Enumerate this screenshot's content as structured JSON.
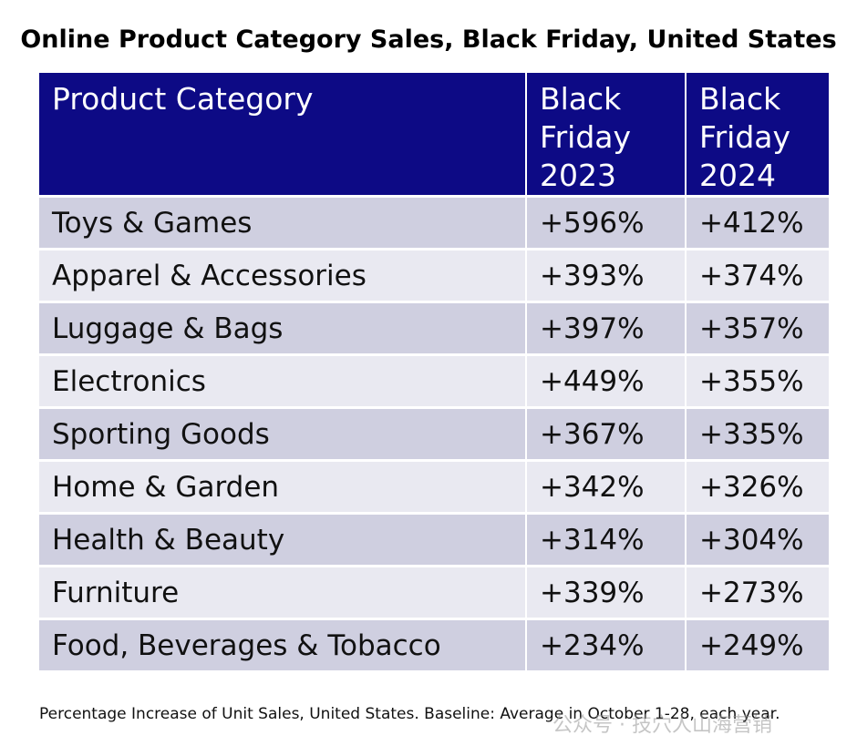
{
  "chart_data": {
    "type": "table",
    "title": "Online Product Category Sales, Black Friday, United States",
    "columns": [
      "Product Category",
      "Black Friday 2023",
      "Black Friday 2024"
    ],
    "rows": [
      {
        "category": "Toys & Games",
        "bf2023": "+596%",
        "bf2024": "+412%"
      },
      {
        "category": "Apparel & Accessories",
        "bf2023": "+393%",
        "bf2024": "+374%"
      },
      {
        "category": "Luggage & Bags",
        "bf2023": "+397%",
        "bf2024": "+357%"
      },
      {
        "category": "Electronics",
        "bf2023": "+449%",
        "bf2024": "+355%"
      },
      {
        "category": "Sporting Goods",
        "bf2023": "+367%",
        "bf2024": "+335%"
      },
      {
        "category": "Home & Garden",
        "bf2023": "+342%",
        "bf2024": "+326%"
      },
      {
        "category": "Health & Beauty",
        "bf2023": "+314%",
        "bf2024": "+304%"
      },
      {
        "category": "Furniture",
        "bf2023": "+339%",
        "bf2024": "+273%"
      },
      {
        "category": "Food, Beverages & Tobacco",
        "bf2023": "+234%",
        "bf2024": "+249%"
      }
    ],
    "footnote": "Percentage Increase of Unit Sales, United States. Baseline: Average in October 1-28, each year."
  },
  "watermark": "公众号 · 技穴人山海营销",
  "colors": {
    "header_bg": "#0d0a85",
    "row_odd": "#cfcfe0",
    "row_even": "#e9e9f1"
  }
}
